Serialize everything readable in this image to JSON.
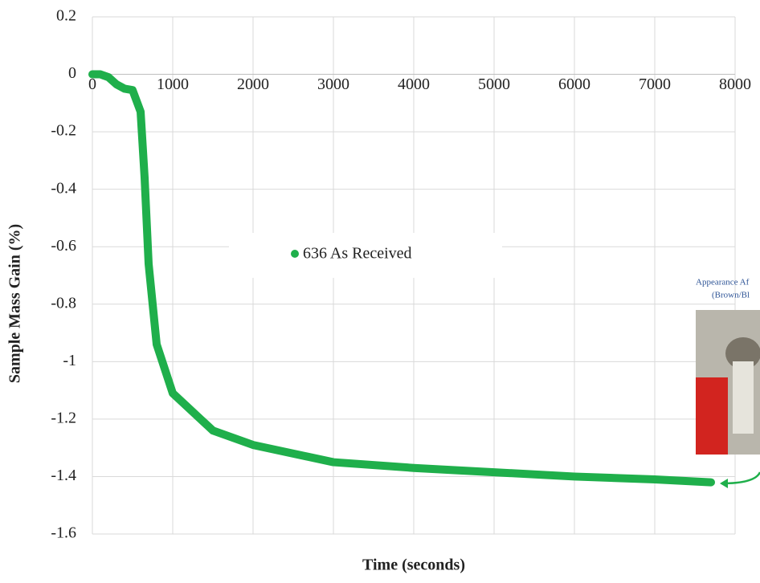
{
  "chart_data": {
    "type": "line",
    "x_label": "Time (seconds)",
    "y_label": "Sample Mass Gain (%)",
    "xlim": [
      0,
      8000
    ],
    "xticks": [
      0,
      1000,
      2000,
      3000,
      4000,
      5000,
      6000,
      7000,
      8000
    ],
    "ylim": [
      -1.6,
      0.2
    ],
    "yticks": [
      0.2,
      0,
      -0.2,
      -0.4,
      -0.6,
      -0.8,
      -1,
      -1.2,
      -1.4,
      -1.6
    ],
    "grid": true,
    "series": [
      {
        "name": "636 As Received",
        "color": "#1faf4b",
        "x": [
          0,
          100,
          200,
          300,
          400,
          500,
          600,
          650,
          700,
          800,
          1000,
          1500,
          2000,
          3000,
          4000,
          5000,
          6000,
          7000,
          7700
        ],
        "values": [
          0,
          0,
          -0.01,
          -0.035,
          -0.05,
          -0.055,
          -0.13,
          -0.36,
          -0.66,
          -0.94,
          -1.11,
          -1.24,
          -1.29,
          -1.35,
          -1.37,
          -1.385,
          -1.4,
          -1.41,
          -1.42
        ]
      }
    ],
    "annotations": [
      "Appearance Af",
      "(Brown/Bl"
    ]
  }
}
